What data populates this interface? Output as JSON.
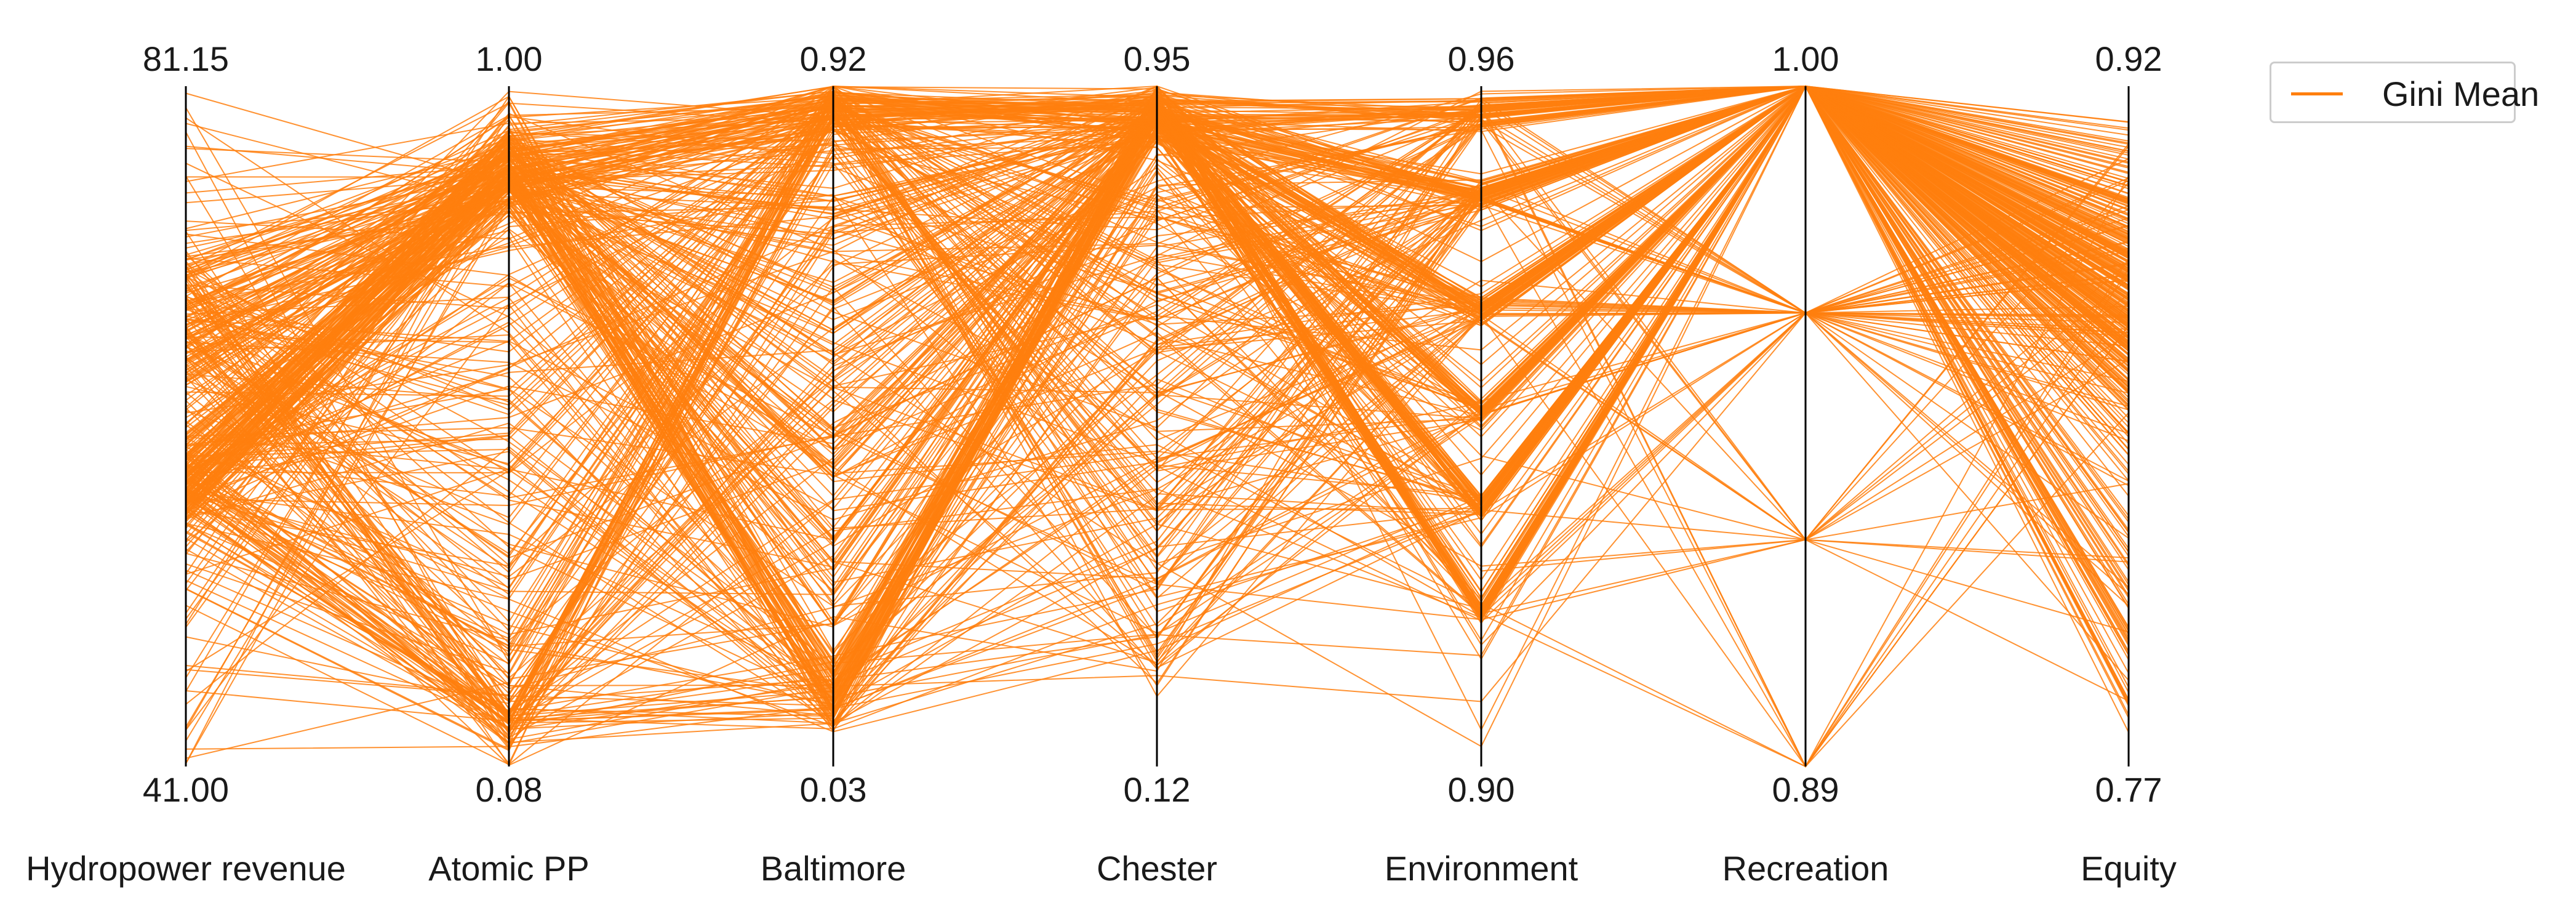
{
  "chart_data": {
    "type": "parallel_coordinates",
    "title": "",
    "axes": [
      {
        "name": "Hydropower revenue",
        "max_label": "81.15",
        "min_label": "41.00",
        "max": 81.15,
        "min": 41.0
      },
      {
        "name": "Atomic PP",
        "max_label": "1.00",
        "min_label": "0.08",
        "max": 1.0,
        "min": 0.08
      },
      {
        "name": "Baltimore",
        "max_label": "0.92",
        "min_label": "0.03",
        "max": 0.92,
        "min": 0.03
      },
      {
        "name": "Chester",
        "max_label": "0.95",
        "min_label": "0.12",
        "max": 0.95,
        "min": 0.12
      },
      {
        "name": "Environment",
        "max_label": "0.96",
        "min_label": "0.90",
        "max": 0.96,
        "min": 0.9
      },
      {
        "name": "Recreation",
        "max_label": "1.00",
        "min_label": "0.89",
        "max": 1.0,
        "min": 0.89
      },
      {
        "name": "Equity",
        "max_label": "0.92",
        "min_label": "0.77",
        "max": 0.92,
        "min": 0.77
      }
    ],
    "series": [
      {
        "name": "Gini Mean",
        "color": "#ff7f0e",
        "line_count": 420
      }
    ],
    "legend_position": "top-right",
    "grid": false
  },
  "legend": {
    "label": "Gini Mean",
    "color": "#ff7f0e"
  },
  "colors": {
    "line": "#ff7f0e",
    "axis": "#000000",
    "text": "#1a1a1a"
  }
}
